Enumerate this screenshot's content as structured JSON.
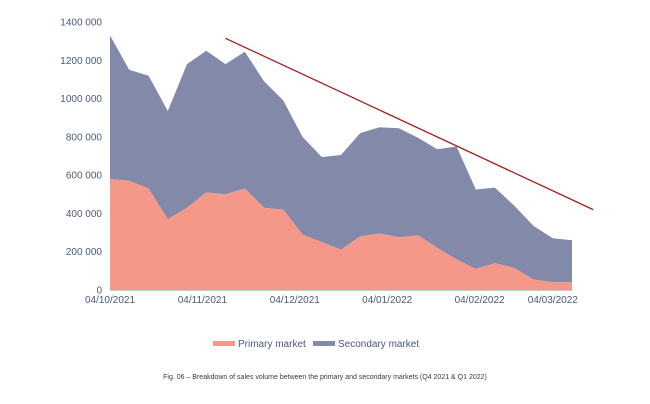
{
  "chart_data": {
    "type": "area",
    "stacked": true,
    "title": "",
    "xlabel": "",
    "ylabel": "",
    "caption": "Fig. 06 – Breakdown of sales volume between the primary and secondary markets (Q4 2021 & Q1 2022)",
    "x_tick_labels": [
      "04/10/2021",
      "04/11/2021",
      "04/12/2021",
      "04/01/2022",
      "04/02/2022",
      "04/03/2022"
    ],
    "y_tick_labels": [
      "0",
      "200 000",
      "400 000",
      "600 000",
      "800 000",
      "1000 000",
      "1200 000",
      "1400 000"
    ],
    "ylim": [
      0,
      1400000
    ],
    "grid": false,
    "legend_position": "bottom-center",
    "series": [
      {
        "name": "Primary market",
        "color": "#f4998a",
        "values": [
          580000,
          570000,
          530000,
          370000,
          430000,
          510000,
          500000,
          530000,
          430000,
          420000,
          290000,
          250000,
          210000,
          280000,
          295000,
          275000,
          285000,
          220000,
          160000,
          110000,
          140000,
          115000,
          55000,
          40000,
          40000
        ]
      },
      {
        "name": "Secondary market",
        "color": "#838aa9",
        "values": [
          750000,
          580000,
          590000,
          565000,
          750000,
          740000,
          680000,
          715000,
          660000,
          570000,
          510000,
          445000,
          495000,
          540000,
          555000,
          570000,
          510000,
          515000,
          590000,
          415000,
          395000,
          325000,
          280000,
          230000,
          220000
        ]
      }
    ],
    "trend_line": {
      "color": "#a51c1c",
      "start_index": 6,
      "start_value": 1315000,
      "end_index": 25.1,
      "end_value": 420000
    }
  }
}
